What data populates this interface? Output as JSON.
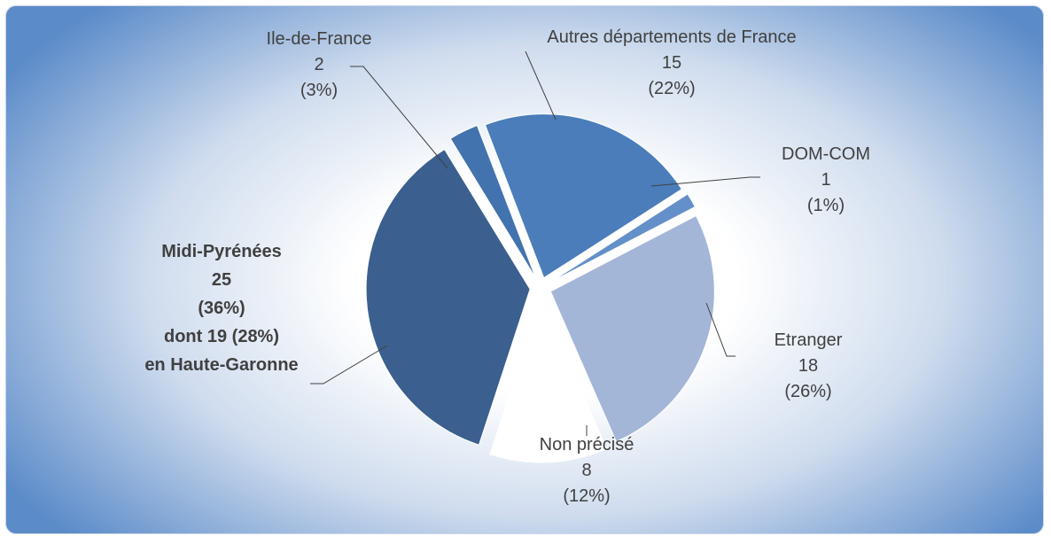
{
  "chart_data": {
    "type": "pie",
    "categories": [
      "Autres départements de France",
      "DOM-COM",
      "Etranger",
      "Non précisé",
      "Midi-Pyrénées",
      "Ile-de-France"
    ],
    "values": [
      15,
      1,
      18,
      8,
      25,
      2
    ],
    "percent_labels": [
      "(22%)",
      "(1%)",
      "(26%)",
      "(12%)",
      "(36%)",
      "(3%)"
    ],
    "colors": [
      "#4a7dba",
      "#6390c9",
      "#a3b6d8",
      "#ffffff",
      "#3b5f8e",
      "#4273ae"
    ],
    "annotation": [
      "dont 19 (28%)",
      "en Haute-Garonne"
    ]
  }
}
